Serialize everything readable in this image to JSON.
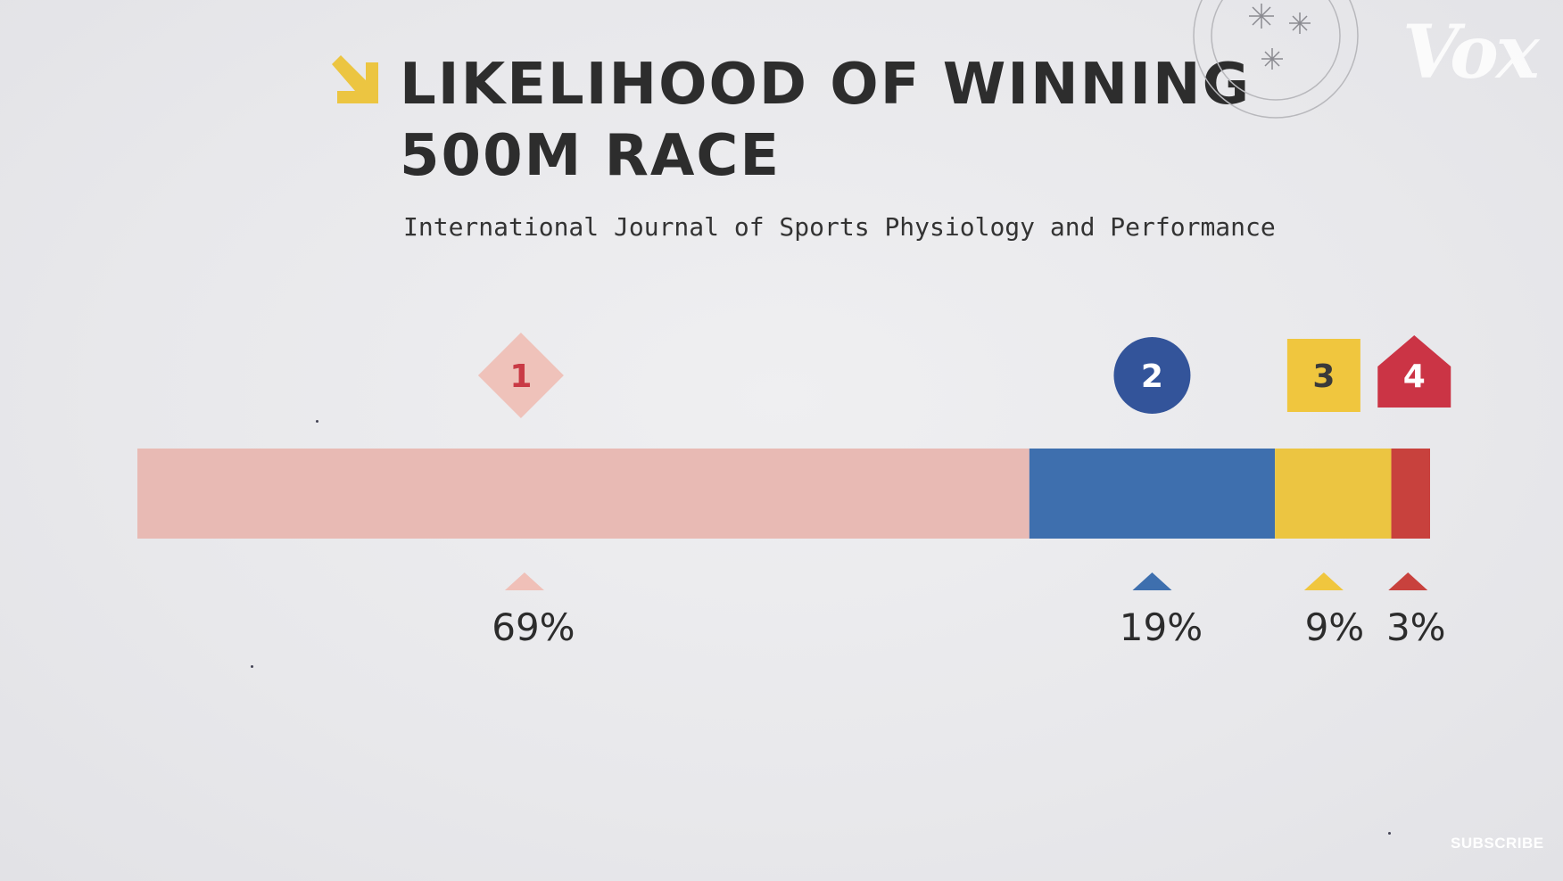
{
  "branding": {
    "logo_text": "Vox",
    "subscribe_label": "SUBSCRIBE"
  },
  "chart_data": {
    "type": "bar",
    "stacked": true,
    "orientation": "horizontal",
    "title_lines": [
      "LIKELIHOOD OF WINNING",
      "500M RACE"
    ],
    "subtitle": "International Journal of Sports Physiology and Performance",
    "categories": [
      "1",
      "2",
      "3",
      "4"
    ],
    "values": [
      69,
      19,
      9,
      3
    ],
    "value_labels": [
      "69%",
      "19%",
      "9%",
      "3%"
    ],
    "marker_shapes": [
      "diamond",
      "circle",
      "square",
      "pentagon"
    ],
    "colors": [
      "#e8bab4",
      "#3e6fae",
      "#ecc541",
      "#c8413d"
    ],
    "marker_colors": [
      "#efc2ba",
      "#33549a",
      "#f0c63e",
      "#cb3445"
    ],
    "marker_text_colors": [
      "#c93a45",
      "#ffffff",
      "#3a3a3a",
      "#ffffff"
    ],
    "pointer_colors": [
      "#f0c0b8",
      "#3e6fae",
      "#f0c63e",
      "#c8413d"
    ],
    "xlim": [
      0,
      100
    ],
    "title_arrow_color": "#ecc541"
  }
}
